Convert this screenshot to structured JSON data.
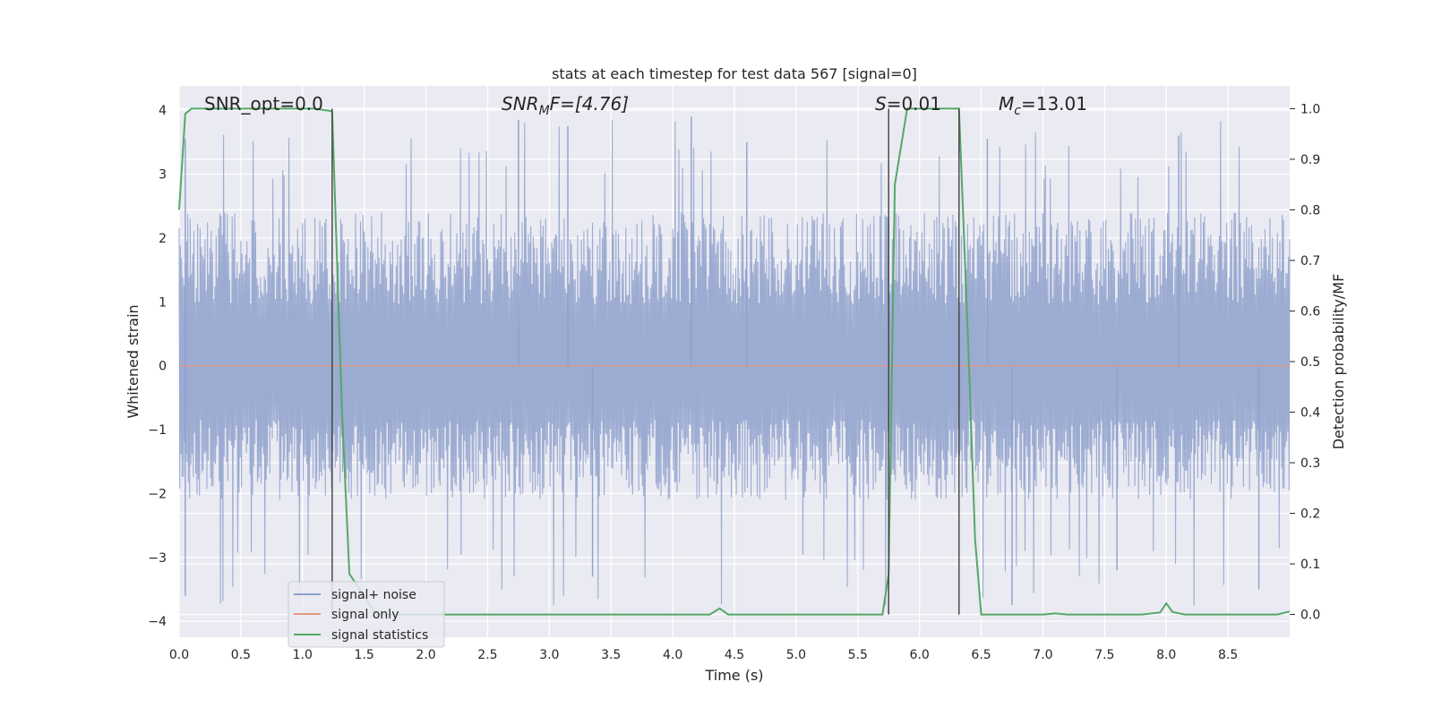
{
  "chart_data": {
    "type": "line",
    "title": "stats at each timestep for test data 567 [signal=0]",
    "xlabel": "Time (s)",
    "ylabel_left": "Whitened strain",
    "ylabel_right": "Detection probability/MF",
    "xlim": [
      0.0,
      9.0
    ],
    "ylim_left": [
      -4.25,
      4.38
    ],
    "ylim_right": [
      -0.045,
      1.045
    ],
    "x_ticks": [
      "0.0",
      "0.5",
      "1.0",
      "1.5",
      "2.0",
      "2.5",
      "3.0",
      "3.5",
      "4.0",
      "4.5",
      "5.0",
      "5.5",
      "6.0",
      "6.5",
      "7.0",
      "7.5",
      "8.0",
      "8.5"
    ],
    "y_left_ticks": [
      "4",
      "3",
      "2",
      "1",
      "0",
      "−1",
      "−2",
      "−3",
      "−4"
    ],
    "y_right_ticks": [
      "1.0",
      "0.9",
      "0.8",
      "0.7",
      "0.6",
      "0.5",
      "0.4",
      "0.3",
      "0.2",
      "0.1",
      "0.0"
    ],
    "grid": true,
    "legend_position": "lower-left",
    "annotations": {
      "snr_opt": "SNR_opt=0.0",
      "snr_mf_base": "SNR",
      "snr_mf_sub": "M",
      "snr_mf_tail": "F=[4.76]",
      "s_label": "S",
      "s_value": "=0.01",
      "mc_base": "M",
      "mc_sub": "c",
      "mc_value": "=13.01"
    },
    "series": [
      {
        "name": "signal+ noise",
        "axis": "left",
        "color": "#8da0cb",
        "style": "dense noise envelope",
        "envelope": {
          "typical_max": 2.4,
          "typical_min": -2.1,
          "peak_max": 3.85,
          "peak_min": -3.8,
          "sample_peaks": [
            {
              "x": 0.05,
              "y": 3.55
            },
            {
              "x": 0.05,
              "y": -3.6
            },
            {
              "x": 2.75,
              "y": 3.85
            },
            {
              "x": 3.15,
              "y": 3.75
            },
            {
              "x": 4.15,
              "y": 3.9
            },
            {
              "x": 4.6,
              "y": 3.5
            },
            {
              "x": 6.55,
              "y": 3.55
            },
            {
              "x": 6.75,
              "y": -3.75
            },
            {
              "x": 8.1,
              "y": 3.6
            },
            {
              "x": 8.75,
              "y": -3.5
            },
            {
              "x": 3.35,
              "y": -3.3
            },
            {
              "x": 7.6,
              "y": -3.2
            }
          ]
        }
      },
      {
        "name": "signal only",
        "axis": "left",
        "color": "#e5967f",
        "x": [
          0.0,
          9.0
        ],
        "y": [
          0.0,
          0.0
        ]
      },
      {
        "name": "signal statistics",
        "axis": "right",
        "color": "#55a868",
        "x": [
          0.0,
          0.05,
          0.1,
          0.3,
          0.6,
          0.9,
          1.1,
          1.24,
          1.32,
          1.38,
          1.6,
          2.0,
          3.0,
          4.0,
          4.3,
          4.38,
          4.45,
          5.0,
          5.5,
          5.7,
          5.75,
          5.8,
          5.9,
          6.2,
          6.32,
          6.4,
          6.45,
          6.5,
          7.0,
          7.1,
          7.2,
          7.8,
          7.95,
          8.0,
          8.05,
          8.15,
          8.5,
          8.9,
          9.0
        ],
        "y": [
          0.8,
          0.99,
          1.0,
          1.0,
          1.0,
          1.0,
          1.0,
          0.995,
          0.4,
          0.08,
          0.0,
          0.0,
          0.0,
          0.0,
          0.0,
          0.012,
          0.0,
          0.0,
          0.0,
          0.0,
          0.08,
          0.85,
          1.0,
          1.0,
          1.0,
          0.5,
          0.15,
          0.0,
          0.0,
          0.002,
          0.0,
          0.0,
          0.004,
          0.022,
          0.005,
          0.0,
          0.0,
          0.0,
          0.006
        ]
      }
    ],
    "vertical_markers": [
      {
        "x": 1.24,
        "y_from": 0.0,
        "y_to": 1.0,
        "color": "#404040"
      },
      {
        "x": 5.75,
        "y_from": 0.0,
        "y_to": 1.0,
        "color": "#404040"
      },
      {
        "x": 6.32,
        "y_from": 0.0,
        "y_to": 1.0,
        "color": "#404040"
      }
    ]
  }
}
